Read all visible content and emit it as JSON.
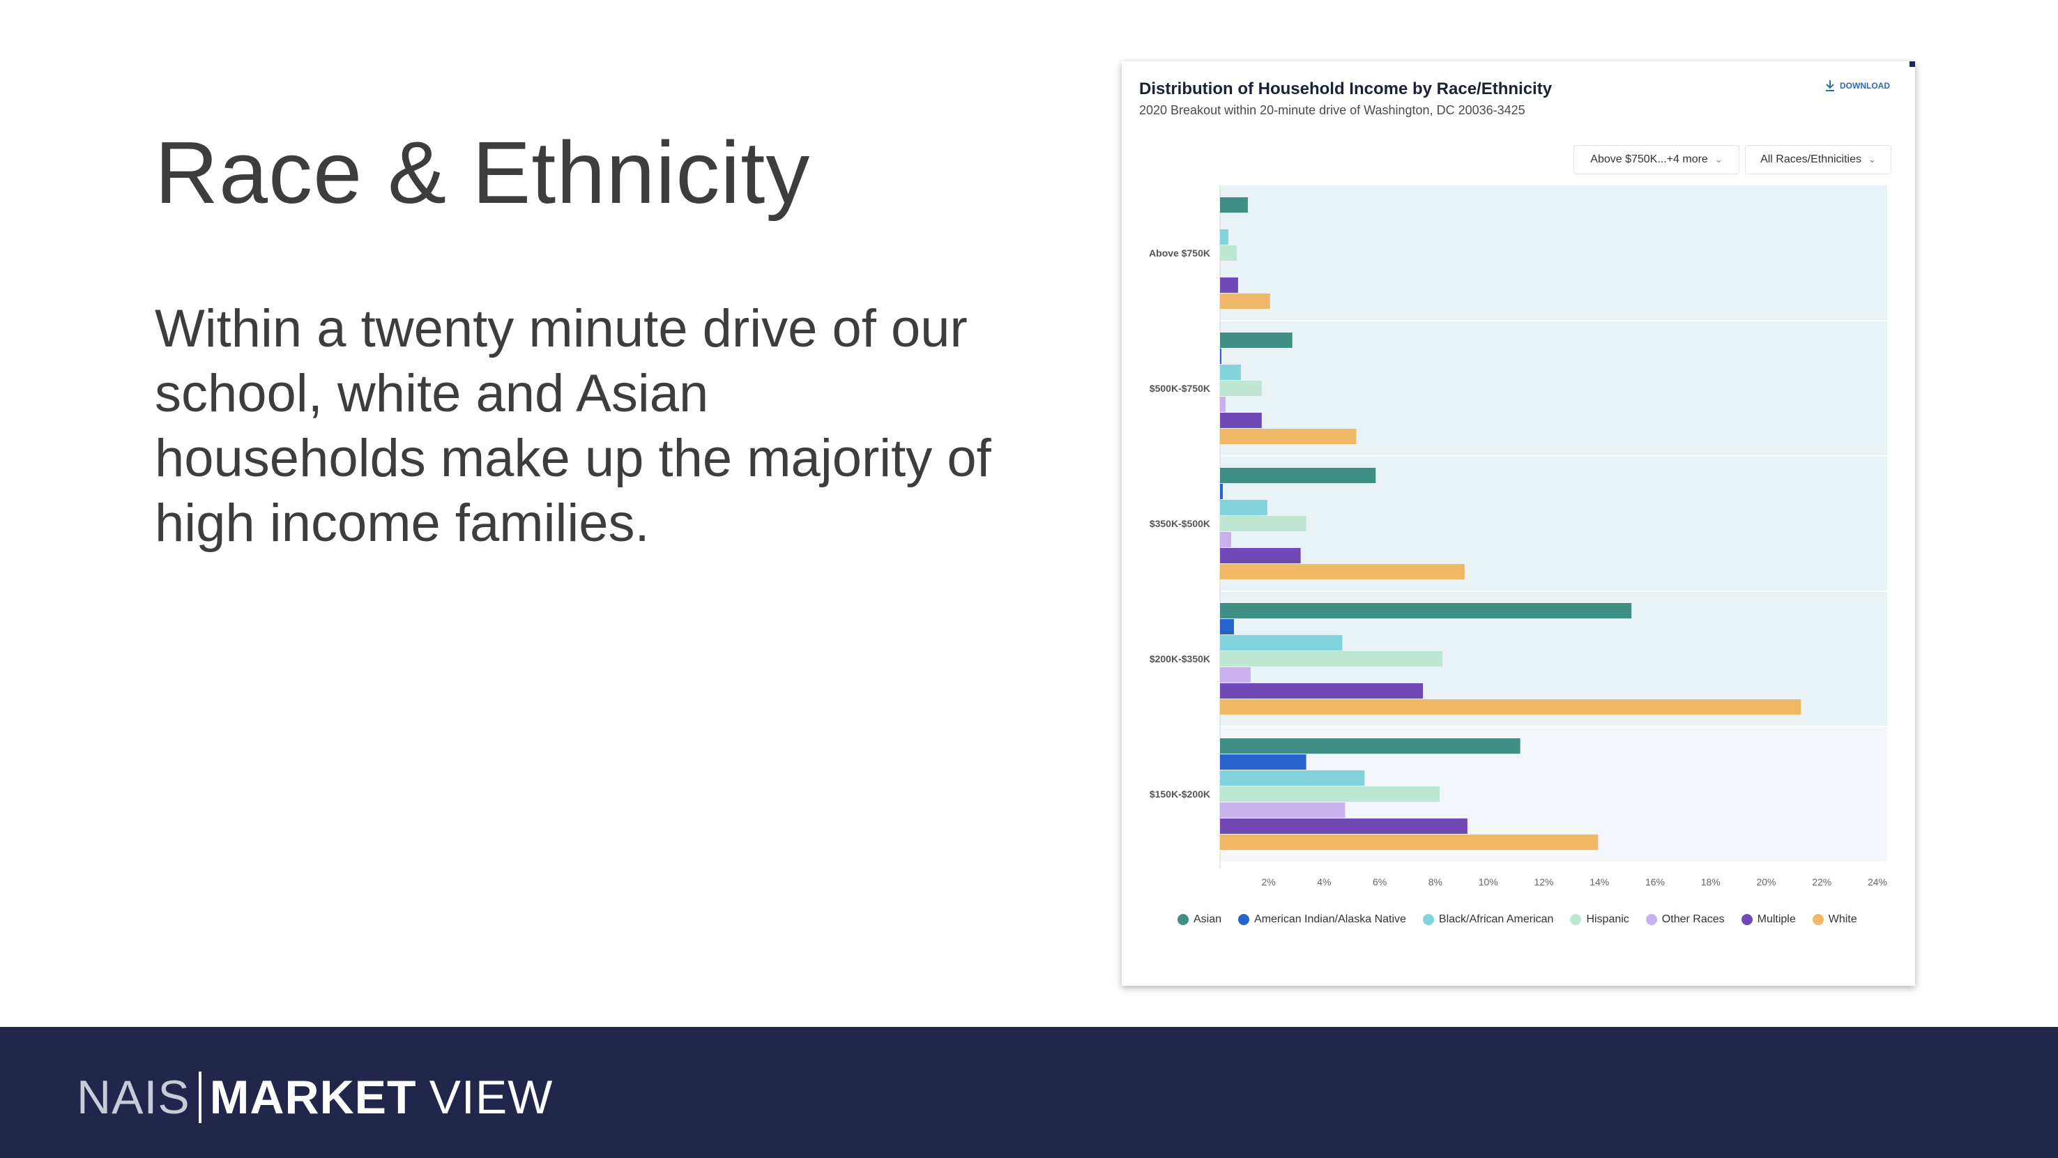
{
  "slide": {
    "title": "Race & Ethnicity",
    "body": "Within a twenty minute drive of our school, white and Asian households make up the majority of high income families."
  },
  "card": {
    "download_label": "DOWNLOAD",
    "dropdowns": [
      {
        "value": "Above $750K...+4 more"
      },
      {
        "value": "All Races/Ethnicities"
      }
    ]
  },
  "footer": {
    "logo_nais": "NAIS",
    "logo_market": "MARKET",
    "logo_view": "VIEW"
  },
  "colors": {
    "Asian": "#3f8f87",
    "American Indian/Alaska Native": "#2663cc",
    "Black/African American": "#82d3dd",
    "Hispanic": "#bde6d3",
    "Other Races": "#c9b1ef",
    "Multiple": "#7049b6",
    "White": "#f0b866",
    "band_dark": "#e9f3f5",
    "band_light": "#f3f7fb"
  },
  "chart_data": {
    "type": "bar",
    "orientation": "horizontal",
    "title": "Distribution of Household Income by Race/Ethnicity",
    "subtitle": "2020 Breakout within 20-minute drive of Washington, DC 20036-3425",
    "categories": [
      "Above $750K",
      "$500K-$750K",
      "$350K-$500K",
      "$200K-$350K",
      "$150K-$200K"
    ],
    "x_ticks": [
      "2%",
      "4%",
      "6%",
      "8%",
      "10%",
      "12%",
      "14%",
      "16%",
      "18%",
      "20%",
      "22%",
      "24%"
    ],
    "xlim": [
      0,
      24
    ],
    "unit": "%",
    "legend_position": "bottom",
    "series": [
      {
        "name": "Asian",
        "values": [
          1.0,
          2.6,
          5.6,
          14.8,
          10.8
        ]
      },
      {
        "name": "American Indian/Alaska Native",
        "values": [
          0.0,
          0.05,
          0.1,
          0.5,
          3.1
        ]
      },
      {
        "name": "Black/African American",
        "values": [
          0.3,
          0.75,
          1.7,
          4.4,
          5.2
        ]
      },
      {
        "name": "Hispanic",
        "values": [
          0.6,
          1.5,
          3.1,
          8.0,
          7.9
        ]
      },
      {
        "name": "Other Races",
        "values": [
          0.0,
          0.2,
          0.4,
          1.1,
          4.5
        ]
      },
      {
        "name": "Multiple",
        "values": [
          0.65,
          1.5,
          2.9,
          7.3,
          8.9
        ]
      },
      {
        "name": "White",
        "values": [
          1.8,
          4.9,
          8.8,
          20.9,
          13.6
        ]
      }
    ]
  }
}
